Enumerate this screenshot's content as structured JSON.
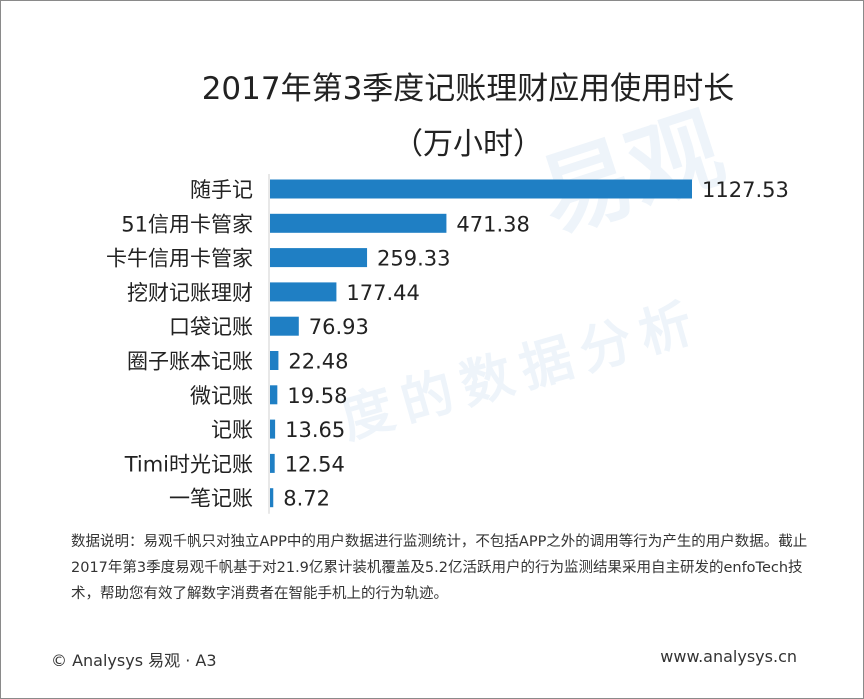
{
  "header": {
    "title_line1": "2017年第3季度记账理财应用使用时长",
    "title_line2": "（万小时）"
  },
  "chart_data": {
    "type": "bar",
    "orientation": "horizontal",
    "title": "2017年第3季度记账理财应用使用时长（万小时）",
    "categories": [
      "随手记",
      "51信用卡管家",
      "卡牛信用卡管家",
      "挖财记账理财",
      "口袋记账",
      "圈子账本记账",
      "微记账",
      "记账",
      "Timi时光记账",
      "一笔记账"
    ],
    "values": [
      1127.53,
      471.38,
      259.33,
      177.44,
      76.93,
      22.48,
      19.58,
      13.65,
      12.54,
      8.72
    ],
    "value_labels": [
      "1127.53",
      "471.38",
      "259.33",
      "177.44",
      "76.93",
      "22.48",
      "19.58",
      "13.65",
      "12.54",
      "8.72"
    ],
    "xlim": [
      0,
      1127.53
    ],
    "grid": false,
    "bar_color": "#1f7fc4"
  },
  "watermark": {
    "brand": "易观",
    "slogan": "度的数据分析"
  },
  "note": {
    "text": "数据说明：易观千帆只对独立APP中的用户数据进行监测统计，不包括APP之外的调用等行为产生的用户数据。截止2017年第3季度易观千帆基于对21.9亿累计装机覆盖及5.2亿活跃用户的行为监测结果采用自主研发的enfoTech技术，帮助您有效了解数字消费者在智能手机上的行为轨迹。"
  },
  "footer": {
    "left": "© Analysys 易观 · A3",
    "right": "www.analysys.cn"
  }
}
